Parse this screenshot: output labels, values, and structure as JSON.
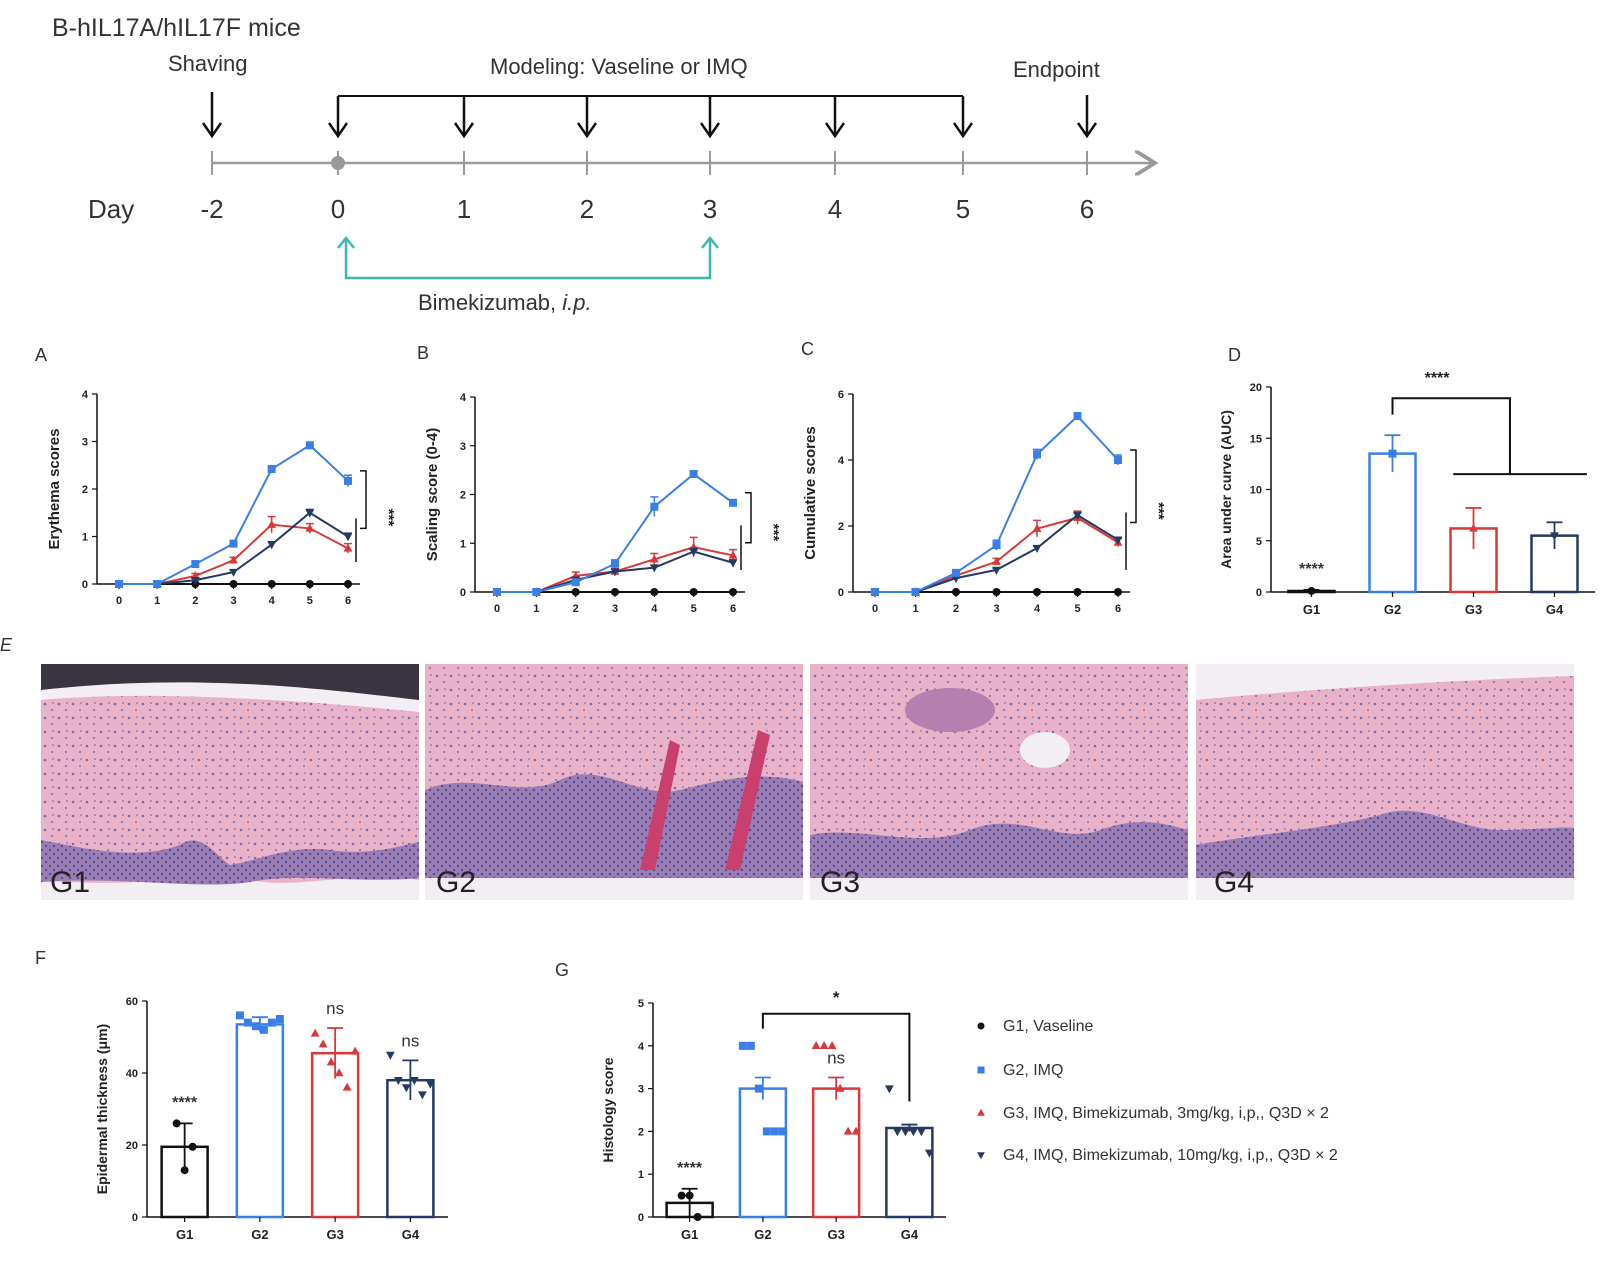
{
  "colors": {
    "G1": "#111111",
    "G2": "#3a7fe8",
    "G3": "#d9383a",
    "G4": "#253a63",
    "timeline": "#9a9a9a",
    "bimekizumab": "#3bb8b0"
  },
  "schema": {
    "title": "B-hIL17A/hIL17F  mice",
    "day_label": "Day",
    "shaving_label": "Shaving",
    "modeling_label": "Modeling: Vaseline or IMQ",
    "endpoint_label": "Endpoint",
    "treatment_label": "Bimekizumab, ",
    "treatment_route": "i.p.",
    "days": [
      "-2",
      "0",
      "1",
      "2",
      "3",
      "4",
      "5",
      "6"
    ]
  },
  "panel_labels": {
    "A": "A",
    "B": "B",
    "C": "C",
    "D": "D",
    "E": "E",
    "F": "F",
    "G": "G"
  },
  "histology": {
    "labels": [
      "G1",
      "G2",
      "G3",
      "G4"
    ]
  },
  "legend": {
    "items": [
      {
        "label": "G1, Vaseline",
        "color": "#111111",
        "marker": "circle"
      },
      {
        "label": "G2, IMQ",
        "color": "#3a7fe8",
        "marker": "square"
      },
      {
        "label": "G3, IMQ, Bimekizumab, 3mg/kg, i,p,, Q3D × 2",
        "color": "#d9383a",
        "marker": "triangle-up"
      },
      {
        "label": "G4, IMQ, Bimekizumab, 10mg/kg, i,p,, Q3D × 2",
        "color": "#253a63",
        "marker": "triangle-down"
      }
    ]
  },
  "chart_data": [
    {
      "panel": "A",
      "type": "line",
      "title": "",
      "xlabel": "",
      "ylabel": "Erythema scores",
      "x": [
        0,
        1,
        2,
        3,
        4,
        5,
        6
      ],
      "xlim": [
        0,
        6
      ],
      "ylim": [
        0,
        4
      ],
      "yticks": [
        0,
        1,
        2,
        3,
        4
      ],
      "series": [
        {
          "name": "G1",
          "values": [
            0,
            0,
            0,
            0,
            0,
            0,
            0
          ],
          "errors": [
            0,
            0,
            0,
            0,
            0,
            0,
            0
          ]
        },
        {
          "name": "G2",
          "values": [
            0,
            0,
            0.42,
            0.85,
            2.42,
            2.92,
            2.17
          ],
          "errors": [
            0,
            0,
            0.04,
            0.05,
            0.06,
            0.06,
            0.12
          ]
        },
        {
          "name": "G3",
          "values": [
            0,
            0,
            0.17,
            0.5,
            1.25,
            1.17,
            0.75
          ],
          "errors": [
            0,
            0,
            0.05,
            0.06,
            0.17,
            0.1,
            0.1
          ]
        },
        {
          "name": "G4",
          "values": [
            0,
            0,
            0.08,
            0.25,
            0.83,
            1.5,
            1.0
          ],
          "errors": [
            0,
            0,
            0.04,
            0.05,
            0.06,
            0.07,
            0.07
          ]
        }
      ],
      "significance": "***"
    },
    {
      "panel": "B",
      "type": "line",
      "title": "",
      "xlabel": "",
      "ylabel": "Scaling score (0-4)",
      "x": [
        0,
        1,
        2,
        3,
        4,
        5,
        6
      ],
      "xlim": [
        0,
        6
      ],
      "ylim": [
        0,
        4
      ],
      "yticks": [
        0,
        1,
        2,
        3,
        4
      ],
      "series": [
        {
          "name": "G1",
          "values": [
            0,
            0,
            0,
            0,
            0,
            0,
            0
          ],
          "errors": [
            0,
            0,
            0,
            0,
            0,
            0,
            0
          ]
        },
        {
          "name": "G2",
          "values": [
            0,
            0,
            0.2,
            0.58,
            1.75,
            2.42,
            1.83
          ],
          "errors": [
            0,
            0,
            0.05,
            0.08,
            0.2,
            0.06,
            0.06
          ]
        },
        {
          "name": "G3",
          "values": [
            0,
            0,
            0.33,
            0.42,
            0.67,
            0.92,
            0.75
          ],
          "errors": [
            0,
            0,
            0.08,
            0.06,
            0.12,
            0.2,
            0.12
          ]
        },
        {
          "name": "G4",
          "values": [
            0,
            0,
            0.25,
            0.42,
            0.5,
            0.83,
            0.6
          ],
          "errors": [
            0,
            0,
            0.05,
            0.05,
            0.05,
            0.06,
            0.06
          ]
        }
      ],
      "significance": "***"
    },
    {
      "panel": "C",
      "type": "line",
      "title": "",
      "xlabel": "",
      "ylabel": "Cumulative scores",
      "x": [
        0,
        1,
        2,
        3,
        4,
        5,
        6
      ],
      "xlim": [
        0,
        6
      ],
      "ylim": [
        0,
        6
      ],
      "yticks": [
        0,
        2,
        4,
        6
      ],
      "series": [
        {
          "name": "G1",
          "values": [
            0,
            0,
            0,
            0,
            0,
            0,
            0
          ],
          "errors": [
            0,
            0,
            0,
            0,
            0,
            0,
            0
          ]
        },
        {
          "name": "G2",
          "values": [
            0,
            0,
            0.58,
            1.42,
            4.17,
            5.33,
            4.0
          ],
          "errors": [
            0,
            0,
            0.08,
            0.15,
            0.15,
            0.1,
            0.15
          ]
        },
        {
          "name": "G3",
          "values": [
            0,
            0,
            0.5,
            0.92,
            1.92,
            2.25,
            1.5
          ],
          "errors": [
            0,
            0,
            0.08,
            0.1,
            0.25,
            0.2,
            0.12
          ]
        },
        {
          "name": "G4",
          "values": [
            0,
            0,
            0.42,
            0.67,
            1.33,
            2.33,
            1.58
          ],
          "errors": [
            0,
            0,
            0.05,
            0.05,
            0.07,
            0.08,
            0.08
          ]
        }
      ],
      "significance": "***"
    },
    {
      "panel": "D",
      "type": "bar",
      "title": "",
      "xlabel": "",
      "ylabel": "Area under curve (AUC)",
      "categories": [
        "G1",
        "G2",
        "G3",
        "G4"
      ],
      "values": [
        0.1,
        13.5,
        6.2,
        5.5
      ],
      "errors": [
        0.1,
        1.8,
        2.0,
        1.3
      ],
      "ylim": [
        0,
        20
      ],
      "yticks": [
        0,
        5,
        10,
        15,
        20
      ],
      "annotations": {
        "G1": "****",
        "comparison": "****"
      }
    },
    {
      "panel": "F",
      "type": "bar",
      "title": "",
      "xlabel": "",
      "ylabel": "Epidermal thickness (μm)",
      "categories": [
        "G1",
        "G2",
        "G3",
        "G4"
      ],
      "values": [
        19.5,
        53.5,
        45.5,
        38.0
      ],
      "errors": [
        6.5,
        2.0,
        7.0,
        5.5
      ],
      "points": [
        [
          26,
          13,
          19.5
        ],
        [
          56,
          54,
          53,
          52,
          54,
          55
        ],
        [
          51,
          48,
          43,
          40,
          36,
          46
        ],
        [
          45,
          38,
          36,
          38,
          34,
          37
        ]
      ],
      "ylim": [
        0,
        60
      ],
      "yticks": [
        0,
        20,
        40,
        60
      ],
      "annotations": {
        "G1": "****",
        "G3": "ns",
        "G4": "ns"
      }
    },
    {
      "panel": "G",
      "type": "bar",
      "title": "",
      "xlabel": "",
      "ylabel": "Histology score",
      "categories": [
        "G1",
        "G2",
        "G3",
        "G4"
      ],
      "values": [
        0.33,
        3.0,
        3.0,
        2.08
      ],
      "errors": [
        0.33,
        0.26,
        0.26,
        0.08
      ],
      "points": [
        [
          0.5,
          0.5,
          0
        ],
        [
          4,
          4,
          3,
          2,
          2,
          2
        ],
        [
          4,
          4,
          4,
          3,
          2,
          2
        ],
        [
          3,
          2,
          2,
          2,
          2,
          1.5
        ]
      ],
      "ylim": [
        0,
        5
      ],
      "yticks": [
        0,
        1,
        2,
        3,
        4,
        5
      ],
      "annotations": {
        "G1": "****",
        "G3": "ns",
        "comparison": "*"
      }
    }
  ]
}
